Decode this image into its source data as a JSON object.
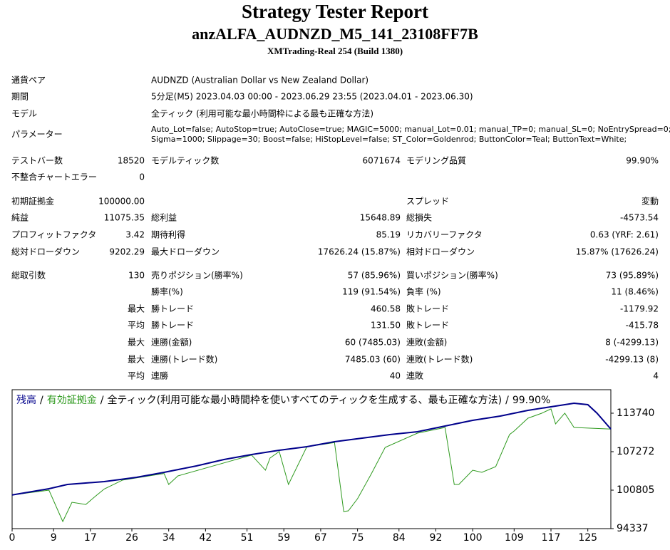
{
  "header": {
    "title": "Strategy Tester Report",
    "subtitle": "anzALFA_AUDNZD_M5_141_23108FF7B",
    "build": "XMTrading-Real 254 (Build 1380)"
  },
  "rows": [
    {
      "label": "通貨ペア",
      "text": "AUDNZD (Australian Dollar vs New Zealand Dollar)"
    },
    {
      "label": "期間",
      "text": "5分足(M5) 2023.04.03 00:00 - 2023.06.29 23:55 (2023.04.01 - 2023.06.30)"
    },
    {
      "label": "モデル",
      "text": "全ティック (利用可能な最小時間枠による最も正確な方法)"
    },
    {
      "label": "パラメーター",
      "lines": [
        "Auto_Lot=false; AutoStop=true; AutoClose=true; MAGIC=5000; manual_Lot=0.01; manual_TP=0; manual_SL=0; NoEntrySpread=0;",
        "Sigma=1000; Slippage=30; Boost=false; HiStopLevel=false; ST_Color=Goldenrod; ButtonColor=Teal; ButtonText=White;"
      ]
    },
    {
      "label": "テストバー数",
      "value": "18520",
      "label2": "モデルティック数",
      "value2": "6071674",
      "label3": "モデリング品質",
      "value3": "99.90%"
    },
    {
      "label": "不整合チャートエラー",
      "value": "0"
    },
    {
      "label": "初期証拠金",
      "value": "100000.00",
      "label3": "スプレッド",
      "value3": "変動"
    },
    {
      "label": "純益",
      "value": "11075.35",
      "label2": "総利益",
      "value2": "15648.89",
      "label3": "総損失",
      "value3": "-4573.54"
    },
    {
      "label": "プロフィットファクタ",
      "value": "3.42",
      "label2": "期待利得",
      "value2": "85.19",
      "label3": "リカバリーファクタ",
      "value3": "0.63 (YRF: 2.61)"
    },
    {
      "label": "総対ドローダウン",
      "value": "9202.29",
      "label2": "最大ドローダウン",
      "value2": "17626.24 (15.87%)",
      "label3": "相対ドローダウン",
      "value3": "15.87% (17626.24)"
    },
    {
      "label": "総取引数",
      "value": "130",
      "label2": "売りポジション(勝率%)",
      "value2": "57 (85.96%)",
      "label3": "買いポジション(勝率%)",
      "value3": "73 (95.89%)"
    },
    {
      "label2": "勝率(%)",
      "value2": "119 (91.54%)",
      "label3": "負率 (%)",
      "value3": "11 (8.46%)"
    },
    {
      "value": "最大",
      "label2": "勝トレード",
      "value2": "460.58",
      "label3": "敗トレード",
      "value3": "-1179.92"
    },
    {
      "value": "平均",
      "label2": "勝トレード",
      "value2": "131.50",
      "label3": "敗トレード",
      "value3": "-415.78"
    },
    {
      "value": "最大",
      "label2": "連勝(金額)",
      "value2": "60 (7485.03)",
      "label3": "連敗(金額)",
      "value3": "8 (-4299.13)"
    },
    {
      "value": "最大",
      "label2": "連勝(トレード数)",
      "value2": "7485.03 (60)",
      "label3": "連敗(トレード数)",
      "value3": "-4299.13 (8)"
    },
    {
      "value": "平均",
      "label2": "連勝",
      "value2": "40",
      "label3": "連敗",
      "value3": "4"
    }
  ],
  "chart": {
    "type": "line",
    "separator": "/",
    "description": "全ティック(利用可能な最小時間枠を使いすべてのティックを生成する、最も正確な方法)",
    "quality": "99.90%",
    "xlim": [
      0,
      130
    ],
    "ylim": [
      94337,
      117690
    ],
    "xticks": [
      0,
      9,
      17,
      26,
      34,
      42,
      51,
      59,
      67,
      75,
      84,
      92,
      100,
      109,
      117,
      125
    ],
    "yticks": [
      94337,
      100805,
      107272,
      113740
    ],
    "series": [
      {
        "name": "残高",
        "color": "#00008b",
        "x": [
          0,
          8,
          12,
          20,
          27,
          33,
          40,
          46,
          52,
          58,
          64,
          70,
          76,
          82,
          88,
          94,
          100,
          106,
          112,
          118,
          122,
          125,
          127,
          130
        ],
        "values": [
          100000,
          101044,
          101763,
          102242,
          102960,
          103799,
          104877,
          105955,
          106793,
          107512,
          108110,
          108949,
          109547,
          110146,
          110626,
          111584,
          112542,
          113260,
          114218,
          114937,
          115416,
          115177,
          113740,
          111075
        ]
      },
      {
        "name": "有効証拠金",
        "color": "#2f9a1f",
        "x": [
          0,
          8,
          11,
          13,
          16,
          18,
          20,
          24,
          33,
          34,
          36,
          52,
          55,
          56,
          58,
          60,
          64,
          70,
          72,
          73,
          75,
          78,
          81,
          88,
          94,
          96,
          97,
          100,
          102,
          105,
          108,
          109,
          112,
          115,
          117,
          118,
          120,
          122,
          130
        ],
        "values": [
          100000,
          100800,
          95535,
          98768,
          98400,
          99727,
          101000,
          102500,
          103600,
          101763,
          103200,
          106700,
          104158,
          106200,
          107300,
          101763,
          108110,
          108800,
          97211,
          97331,
          99367,
          103559,
          107990,
          110386,
          111344,
          101763,
          101763,
          104158,
          103800,
          104757,
          110146,
          110745,
          112900,
          113740,
          114458,
          111943,
          113740,
          111344,
          111075
        ]
      }
    ]
  }
}
